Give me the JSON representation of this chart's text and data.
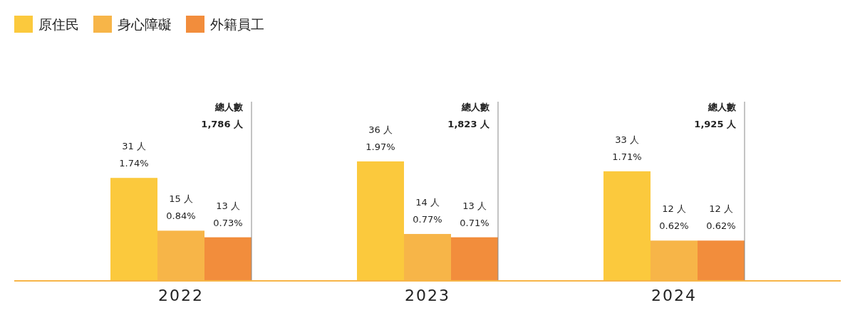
{
  "chart_data": {
    "type": "bar",
    "categories": [
      "2022",
      "2023",
      "2024"
    ],
    "series": [
      {
        "name": "原住民",
        "color": "#fbc93d",
        "values": [
          31,
          36,
          33
        ],
        "value_labels": [
          "31 人\n1.74%",
          "36 人\n1.97%",
          "33 人\n1.71%"
        ]
      },
      {
        "name": "身心障礙",
        "color": "#f7b548",
        "values": [
          15,
          14,
          12
        ],
        "value_labels": [
          "15 人\n0.84%",
          "14 人\n0.77%",
          "12 人\n0.62%"
        ]
      },
      {
        "name": "外籍員工",
        "color": "#f28d3c",
        "values": [
          13,
          13,
          12
        ],
        "value_labels": [
          "13 人\n0.73%",
          "13 人\n0.71%",
          "12 人\n0.62%"
        ]
      }
    ],
    "annotations": [
      "總人數\n1,786 人",
      "總人數\n1,823 人",
      "總人數\n1,925 人"
    ],
    "legend": "top left"
  }
}
